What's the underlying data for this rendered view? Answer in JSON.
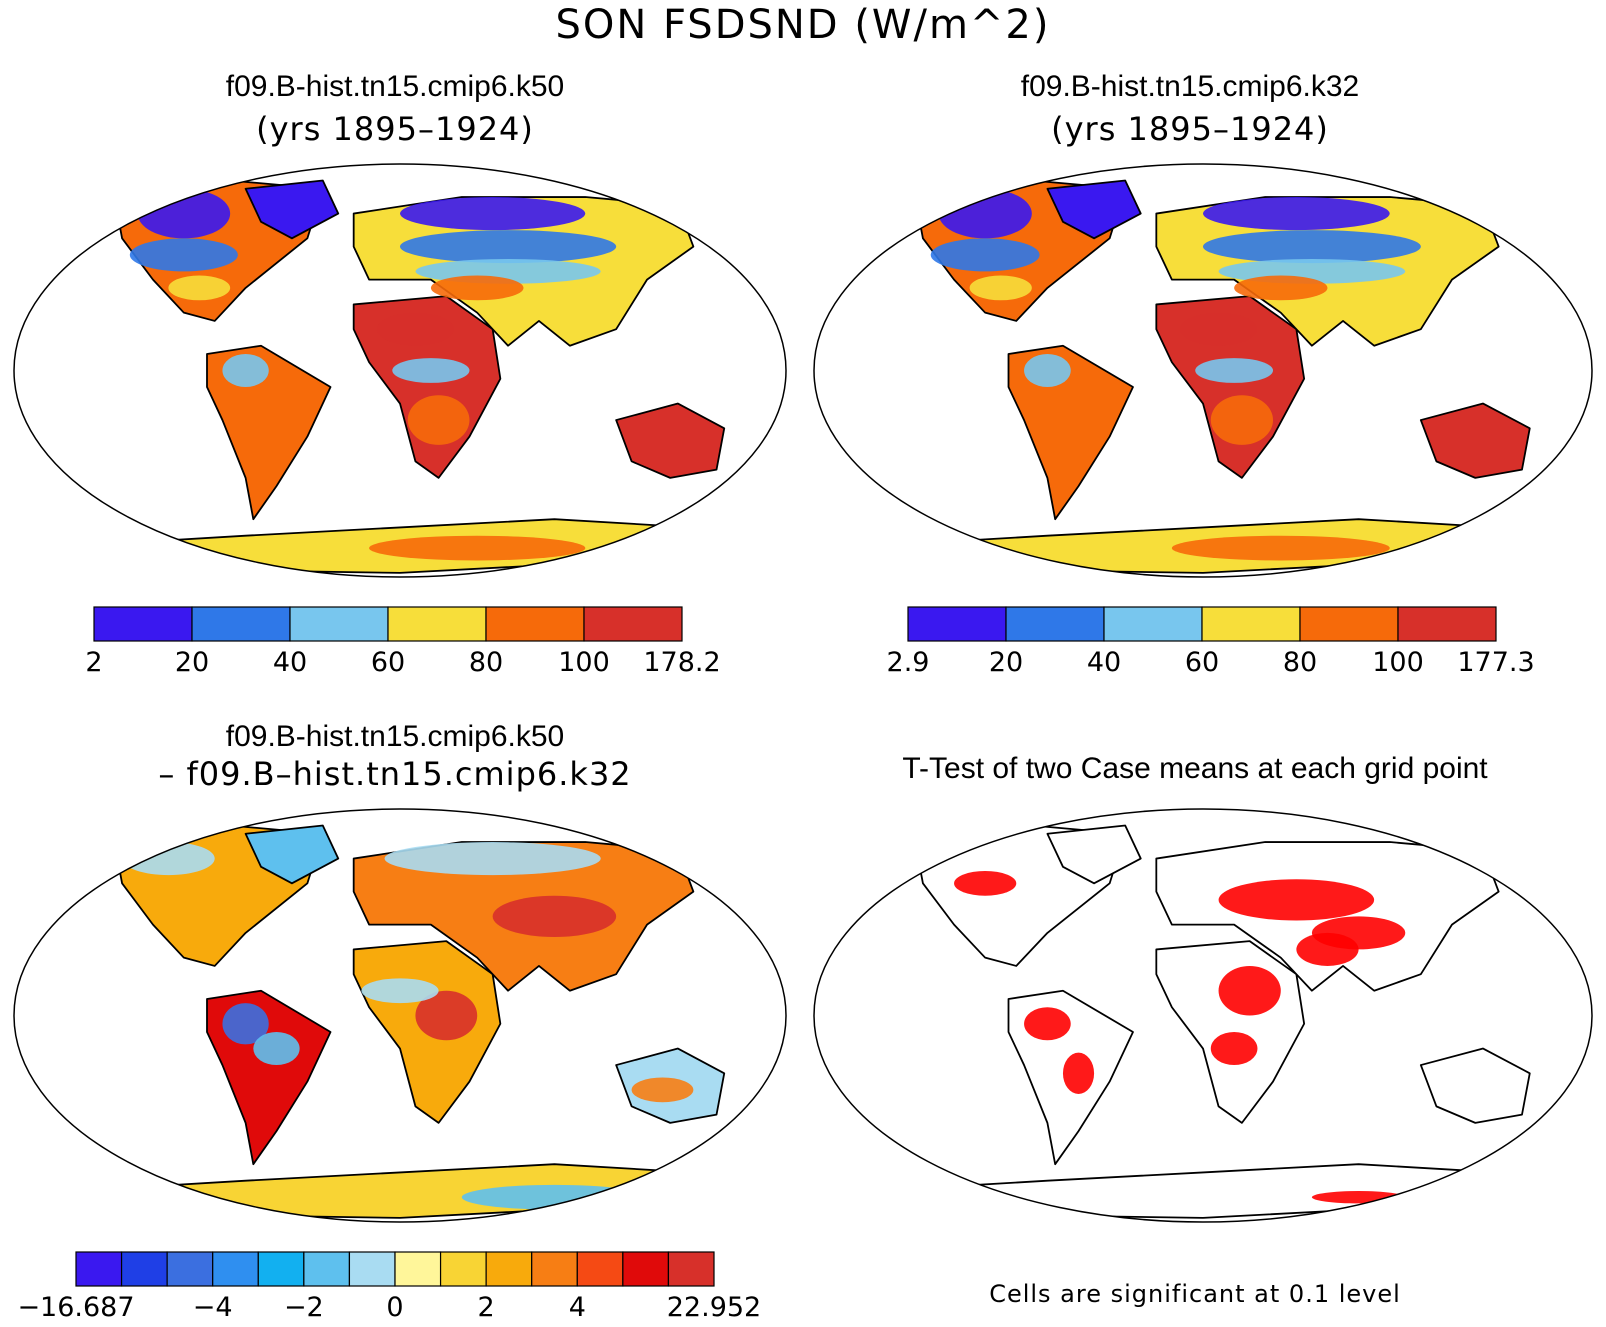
{
  "figure": {
    "title": "SON FSDSND (W/m^2)"
  },
  "panels": [
    {
      "id": "k50",
      "title": "f09.B-hist.tn15.cmip6.k50",
      "subtitle": "(yrs 1895–1924)",
      "colorbar": {
        "labels": [
          "2",
          "20",
          "40",
          "60",
          "80",
          "100",
          "178.2"
        ],
        "colors": [
          "#3a18f0",
          "#2f78e8",
          "#78c6ee",
          "#f7de3a",
          "#f66a0a",
          "#d7302a"
        ]
      }
    },
    {
      "id": "k32",
      "title": "f09.B-hist.tn15.cmip6.k32",
      "subtitle": "(yrs 1895–1924)",
      "colorbar": {
        "labels": [
          "2.9",
          "20",
          "40",
          "60",
          "80",
          "100",
          "177.3"
        ],
        "colors": [
          "#3a18f0",
          "#2f78e8",
          "#78c6ee",
          "#f7de3a",
          "#f66a0a",
          "#d7302a"
        ]
      }
    },
    {
      "id": "diff",
      "title": "f09.B-hist.tn15.cmip6.k50",
      "subtitle": "– f09.B–hist.tn15.cmip6.k32",
      "colorbar": {
        "labels": [
          "−16.687",
          "−4",
          "−2",
          "0",
          "2",
          "4",
          "22.952"
        ],
        "colors": [
          "#3a18f0",
          "#1f3fe6",
          "#3b6fe0",
          "#2f8ff0",
          "#12b0f0",
          "#5ec0ee",
          "#a9dcf2",
          "#fff69a",
          "#f8d434",
          "#f8aa0c",
          "#f77e14",
          "#f54a14",
          "#e00a0a",
          "#d7302a"
        ]
      }
    },
    {
      "id": "ttest",
      "title": "T-Test of two Case means at each grid point",
      "note": "Cells are significant at 0.1 level"
    }
  ]
}
